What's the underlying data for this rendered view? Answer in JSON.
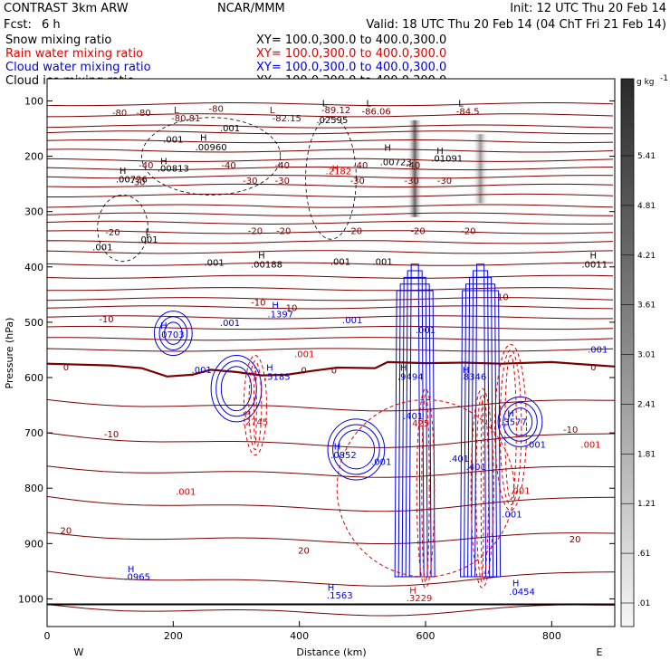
{
  "header": {
    "model": "CONTRAST  3km ARW",
    "center": "NCAR/MMM",
    "init": "Init: 12 UTC Thu 20 Feb 14",
    "fcst_label": "Fcst:",
    "fcst_value": "6 h",
    "valid": "Valid: 18 UTC Thu 20 Feb 14 (04 ChT Fri 21 Feb 14)"
  },
  "colors": {
    "snow": "#000000",
    "rain": "#e00000",
    "cloud_water": "#0000e0",
    "cloud_ice": "#000000",
    "temperature": "#7a0000"
  },
  "chart_data": {
    "type": "contour",
    "xlabel": "Distance (km)",
    "ylabel": "Pressure (hPa)",
    "xlim": [
      0,
      900
    ],
    "ylim": [
      1050,
      60
    ],
    "x_ticks": [
      0,
      200,
      400,
      600,
      800
    ],
    "y_ticks": [
      100,
      200,
      300,
      400,
      500,
      600,
      700,
      800,
      900,
      1000
    ],
    "x_ends": {
      "left": "W",
      "right": "E"
    },
    "legend": [
      {
        "name": "Snow mixing ratio",
        "color": "#000000",
        "xy": "XY=  100.0,300.0 to 400.0,300.0"
      },
      {
        "name": "Rain water mixing ratio",
        "color": "#e00000",
        "xy": "XY=  100.0,300.0 to 400.0,300.0"
      },
      {
        "name": "Cloud water mixing ratio",
        "color": "#0000e0",
        "xy": "XY=  100.0,300.0 to 400.0,300.0"
      },
      {
        "name": "Cloud ice mixing ratio",
        "color": "#000000",
        "xy": "XY=  100.0,300.0 to 400.0,300.0"
      }
    ],
    "colorbar": {
      "unit": "g kg",
      "unit_exp": "-1",
      "ticks": [
        "5.41",
        "4.81",
        "4.21",
        "3.61",
        "3.01",
        "2.41",
        "1.81",
        "1.21",
        ".61",
        ".01"
      ]
    },
    "labels": [
      {
        "t": "L",
        "x": 205,
        "p": 122,
        "c": "#7a0000"
      },
      {
        "t": "-80.81",
        "x": 220,
        "p": 137,
        "c": "#7a0000"
      },
      {
        "t": "L",
        "x": 357,
        "p": 122,
        "c": "#7a0000"
      },
      {
        "t": "-82.15",
        "x": 380,
        "p": 137,
        "c": "#7a0000"
      },
      {
        "t": "L",
        "x": 440,
        "p": 110,
        "c": "#000"
      },
      {
        "t": "-89.12",
        "x": 458,
        "p": 122,
        "c": "#7a0000"
      },
      {
        "t": ".02595",
        "x": 452,
        "p": 140,
        "c": "#000"
      },
      {
        "t": "L",
        "x": 510,
        "p": 110,
        "c": "#000"
      },
      {
        "t": "-86.06",
        "x": 522,
        "p": 125,
        "c": "#7a0000"
      },
      {
        "t": "L",
        "x": 656,
        "p": 110,
        "c": "#000"
      },
      {
        "t": "-84.5",
        "x": 667,
        "p": 125,
        "c": "#7a0000"
      },
      {
        "t": "-80",
        "x": 115,
        "p": 127,
        "c": "#7a0000"
      },
      {
        "t": "-80",
        "x": 153,
        "p": 127,
        "c": "#7a0000"
      },
      {
        "t": "-80",
        "x": 268,
        "p": 120,
        "c": "#7a0000"
      },
      {
        "t": ".001",
        "x": 290,
        "p": 155,
        "c": "#000"
      },
      {
        "t": ".001",
        "x": 200,
        "p": 175,
        "c": "#000"
      },
      {
        "t": "H",
        "x": 248,
        "p": 172,
        "c": "#000"
      },
      {
        "t": ".00960",
        "x": 260,
        "p": 189,
        "c": "#000"
      },
      {
        "t": "H",
        "x": 185,
        "p": 215,
        "c": "#000"
      },
      {
        "t": ".00813",
        "x": 200,
        "p": 228,
        "c": "#000"
      },
      {
        "t": "H",
        "x": 120,
        "p": 232,
        "c": "#000"
      },
      {
        "t": ".00726",
        "x": 134,
        "p": 247,
        "c": "#000"
      },
      {
        "t": "-40",
        "x": 157,
        "p": 222,
        "c": "#7a0000"
      },
      {
        "t": "-40",
        "x": 288,
        "p": 222,
        "c": "#7a0000"
      },
      {
        "t": "-40",
        "x": 373,
        "p": 222,
        "c": "#7a0000"
      },
      {
        "t": "-40",
        "x": 497,
        "p": 222,
        "c": "#7a0000"
      },
      {
        "t": "-40",
        "x": 580,
        "p": 222,
        "c": "#7a0000"
      },
      {
        "t": "H",
        "x": 540,
        "p": 190,
        "c": "#000"
      },
      {
        "t": ".00723",
        "x": 553,
        "p": 216,
        "c": "#000"
      },
      {
        "t": "H",
        "x": 623,
        "p": 196,
        "c": "#000"
      },
      {
        "t": ".01091",
        "x": 634,
        "p": 210,
        "c": "#000"
      },
      {
        "t": "-30",
        "x": 144,
        "p": 252,
        "c": "#7a0000"
      },
      {
        "t": "-30",
        "x": 322,
        "p": 250,
        "c": "#7a0000"
      },
      {
        "t": "-30",
        "x": 373,
        "p": 250,
        "c": "#7a0000"
      },
      {
        "t": "-30",
        "x": 492,
        "p": 250,
        "c": "#7a0000"
      },
      {
        "t": "-30",
        "x": 578,
        "p": 250,
        "c": "#7a0000"
      },
      {
        "t": "-30",
        "x": 630,
        "p": 250,
        "c": "#7a0000"
      },
      {
        "t": "H",
        "x": 457,
        "p": 228,
        "c": "#e00000"
      },
      {
        "t": ".2182",
        "x": 462,
        "p": 233,
        "c": "#e00000"
      },
      {
        "t": "-20",
        "x": 104,
        "p": 343,
        "c": "#7a0000"
      },
      {
        "t": "-20",
        "x": 330,
        "p": 341,
        "c": "#7a0000"
      },
      {
        "t": "-20",
        "x": 375,
        "p": 341,
        "c": "#7a0000"
      },
      {
        "t": "-20",
        "x": 488,
        "p": 341,
        "c": "#7a0000"
      },
      {
        "t": "-20",
        "x": 588,
        "p": 341,
        "c": "#7a0000"
      },
      {
        "t": "-20",
        "x": 668,
        "p": 341,
        "c": "#7a0000"
      },
      {
        "t": "L",
        "x": 160,
        "p": 342,
        "c": "#000"
      },
      {
        "t": ".001",
        "x": 160,
        "p": 356,
        "c": "#000"
      },
      {
        "t": ".001",
        "x": 88,
        "p": 370,
        "c": "#000"
      },
      {
        "t": ".001",
        "x": 265,
        "p": 398,
        "c": "#000"
      },
      {
        "t": "H",
        "x": 340,
        "p": 385,
        "c": "#000"
      },
      {
        "t": ".00188",
        "x": 348,
        "p": 401,
        "c": "#000"
      },
      {
        "t": ".001",
        "x": 465,
        "p": 396,
        "c": "#000"
      },
      {
        "t": ".001",
        "x": 532,
        "p": 396,
        "c": "#000"
      },
      {
        "t": "H",
        "x": 866,
        "p": 385,
        "c": "#000"
      },
      {
        "t": ".0011",
        "x": 868,
        "p": 401,
        "c": "#000"
      },
      {
        "t": "-10",
        "x": 94,
        "p": 500,
        "c": "#7a0000"
      },
      {
        "t": "-10",
        "x": 335,
        "p": 470,
        "c": "#7a0000"
      },
      {
        "t": "-10",
        "x": 385,
        "p": 480,
        "c": "#7a0000"
      },
      {
        "t": "-10",
        "x": 720,
        "p": 460,
        "c": "#7a0000"
      },
      {
        "t": "H",
        "x": 362,
        "p": 475,
        "c": "#0000e0"
      },
      {
        "t": ".1397",
        "x": 370,
        "p": 491,
        "c": "#0000e0"
      },
      {
        "t": ".001",
        "x": 290,
        "p": 507,
        "c": "#0000e0"
      },
      {
        "t": ".001",
        "x": 484,
        "p": 502,
        "c": "#0000e0"
      },
      {
        "t": ".001",
        "x": 600,
        "p": 520,
        "c": "#0000e0"
      },
      {
        "t": "H",
        "x": 185,
        "p": 512,
        "c": "#0000e0"
      },
      {
        "t": ".0703",
        "x": 197,
        "p": 528,
        "c": "#0000e0"
      },
      {
        "t": ".001",
        "x": 873,
        "p": 555,
        "c": "#0000e0"
      },
      {
        "t": ".001",
        "x": 408,
        "p": 563,
        "c": "#e00000"
      },
      {
        "t": "0",
        "x": 30,
        "p": 587,
        "c": "#7a0000"
      },
      {
        "t": "0",
        "x": 407,
        "p": 593,
        "c": "#7a0000"
      },
      {
        "t": "0",
        "x": 455,
        "p": 593,
        "c": "#7a0000"
      },
      {
        "t": "0",
        "x": 866,
        "p": 587,
        "c": "#7a0000"
      },
      {
        "t": ".001",
        "x": 245,
        "p": 592,
        "c": "#0000e0"
      },
      {
        "t": "H",
        "x": 353,
        "p": 588,
        "c": "#0000e0"
      },
      {
        "t": ".5185",
        "x": 365,
        "p": 604,
        "c": "#0000e0"
      },
      {
        "t": "H",
        "x": 565,
        "p": 588,
        "c": "#0000e0"
      },
      {
        "t": ".9494",
        "x": 576,
        "p": 604,
        "c": "#0000e0"
      },
      {
        "t": "H",
        "x": 664,
        "p": 592,
        "c": "#0000e0"
      },
      {
        "t": ".8346",
        "x": 676,
        "p": 604,
        "c": "#0000e0"
      },
      {
        "t": "H",
        "x": 318,
        "p": 672,
        "c": "#e00000"
      },
      {
        "t": ".2745",
        "x": 330,
        "p": 686,
        "c": "#e00000"
      },
      {
        "t": "H",
        "x": 735,
        "p": 670,
        "c": "#0000e0"
      },
      {
        "t": ".3577",
        "x": 740,
        "p": 686,
        "c": "#0000e0"
      },
      {
        "t": ".401",
        "x": 580,
        "p": 675,
        "c": "#0000e0"
      },
      {
        "t": ".425",
        "x": 590,
        "p": 688,
        "c": "#e00000"
      },
      {
        "t": "-10",
        "x": 102,
        "p": 708,
        "c": "#7a0000"
      },
      {
        "t": "-10",
        "x": 830,
        "p": 700,
        "c": "#7a0000"
      },
      {
        "t": ".001",
        "x": 775,
        "p": 727,
        "c": "#0000e0"
      },
      {
        "t": ".001",
        "x": 862,
        "p": 727,
        "c": "#e00000"
      },
      {
        "t": "H",
        "x": 460,
        "p": 730,
        "c": "#0000e0"
      },
      {
        "t": ".0852",
        "x": 470,
        "p": 746,
        "c": "#0000e0"
      },
      {
        "t": ".001",
        "x": 530,
        "p": 758,
        "c": "#0000e0"
      },
      {
        "t": ".401",
        "x": 653,
        "p": 752,
        "c": "#0000e0"
      },
      {
        "t": ".401",
        "x": 680,
        "p": 767,
        "c": "#0000e0"
      },
      {
        "t": ".001",
        "x": 220,
        "p": 812,
        "c": "#e00000"
      },
      {
        "t": ".001",
        "x": 750,
        "p": 810,
        "c": "#e00000"
      },
      {
        "t": ".001",
        "x": 737,
        "p": 853,
        "c": "#0000e0"
      },
      {
        "t": "20",
        "x": 30,
        "p": 882,
        "c": "#7a0000"
      },
      {
        "t": "20",
        "x": 407,
        "p": 918,
        "c": "#7a0000"
      },
      {
        "t": "20",
        "x": 837,
        "p": 898,
        "c": "#7a0000"
      },
      {
        "t": "H",
        "x": 133,
        "p": 952,
        "c": "#0000e0"
      },
      {
        "t": ".0965",
        "x": 143,
        "p": 966,
        "c": "#0000e0"
      },
      {
        "t": "H",
        "x": 450,
        "p": 985,
        "c": "#0000e0"
      },
      {
        "t": ".1563",
        "x": 464,
        "p": 999,
        "c": "#0000e0"
      },
      {
        "t": "H",
        "x": 743,
        "p": 977,
        "c": "#0000e0"
      },
      {
        "t": ".0454",
        "x": 753,
        "p": 993,
        "c": "#0000e0"
      },
      {
        "t": "H",
        "x": 580,
        "p": 990,
        "c": "#e00000"
      },
      {
        "t": ".3229",
        "x": 590,
        "p": 1004,
        "c": "#e00000"
      }
    ],
    "isotherms_hPa": {
      "p_levels": [
        106,
        126,
        146,
        157,
        173,
        190,
        207,
        222,
        237,
        253,
        271,
        290,
        305,
        320,
        337,
        355,
        373,
        395,
        418,
        440,
        458,
        473,
        491,
        510,
        530,
        550
      ],
      "zero_line": [
        [
          0,
          575
        ],
        [
          100,
          578
        ],
        [
          150,
          583
        ],
        [
          190,
          598
        ],
        [
          230,
          595
        ],
        [
          260,
          586
        ],
        [
          300,
          590
        ],
        [
          340,
          596
        ],
        [
          380,
          595
        ],
        [
          420,
          588
        ],
        [
          460,
          582
        ],
        [
          520,
          583
        ],
        [
          540,
          572
        ],
        [
          600,
          574
        ],
        [
          660,
          573
        ],
        [
          720,
          575
        ],
        [
          800,
          572
        ],
        [
          860,
          577
        ],
        [
          900,
          580
        ]
      ],
      "lower_levels": [
        640,
        700,
        760,
        815,
        880,
        950,
        1010
      ]
    },
    "plumes": [
      {
        "name": "plume-west",
        "x": 583,
        "p_top": 135,
        "p_bottom": 310,
        "intensity": 0.85
      },
      {
        "name": "plume-east",
        "x": 687,
        "p_top": 160,
        "p_bottom": 285,
        "intensity": 0.55
      }
    ]
  }
}
